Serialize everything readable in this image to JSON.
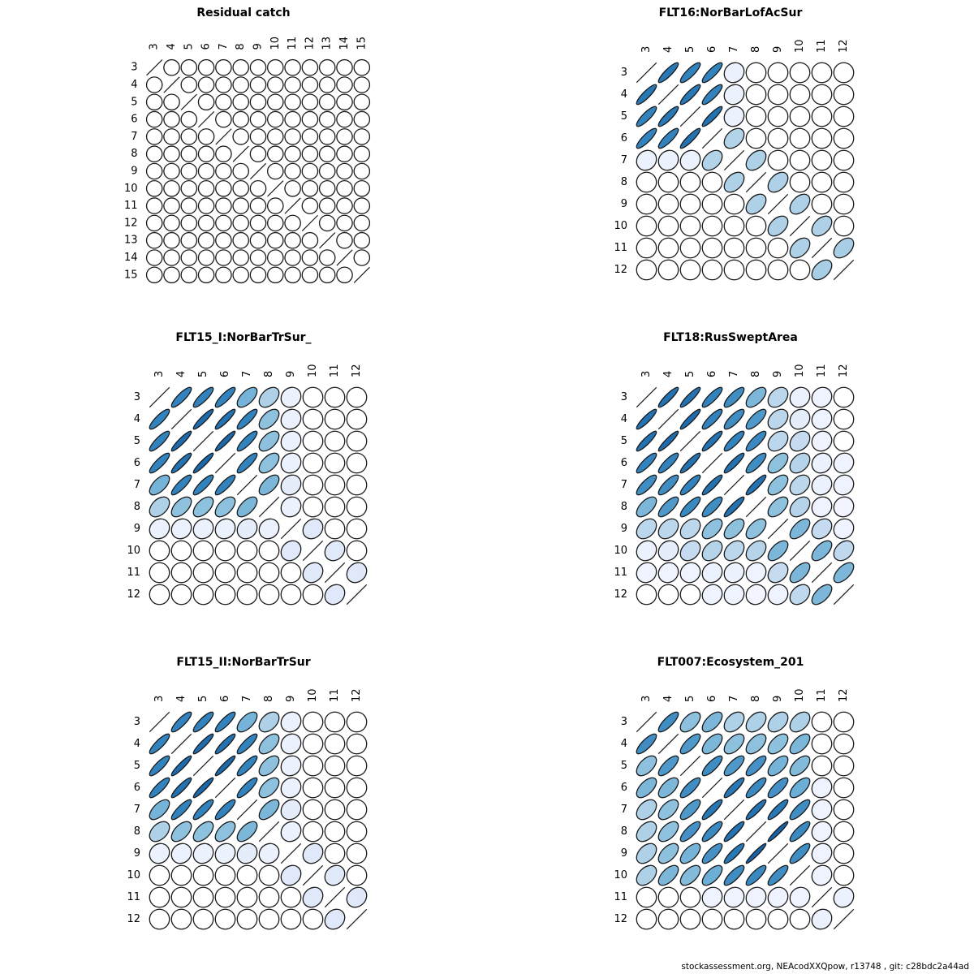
{
  "page": {
    "background": "#ffffff"
  },
  "footer": {
    "text": "stockassessment.org, NEAcodXXQpow, r13748 , git: c28bdc2a44ad"
  },
  "palette": {
    "description": "correlation magnitude mapped to Blues scale; 0 = white circle, 1 = diagonal line",
    "stroke": "#1a1a1a",
    "stops": [
      {
        "t": 0.0,
        "c": "#ffffff"
      },
      {
        "t": 0.1,
        "c": "#eff3ff"
      },
      {
        "t": 0.3,
        "c": "#c6dbef"
      },
      {
        "t": 0.5,
        "c": "#9ecae1"
      },
      {
        "t": 0.65,
        "c": "#6baed6"
      },
      {
        "t": 0.85,
        "c": "#3182bd"
      },
      {
        "t": 1.0,
        "c": "#08519c"
      }
    ]
  },
  "chart_data": [
    {
      "type": "heatmap",
      "subtype": "correlation-ellipse-matrix",
      "title": "Residual catch",
      "categories": [
        "3",
        "4",
        "5",
        "6",
        "7",
        "8",
        "9",
        "10",
        "11",
        "12",
        "13",
        "14",
        "15"
      ],
      "diagonal": 1,
      "upper_triangle": [
        [
          0,
          0,
          0,
          0,
          0,
          0,
          0,
          0,
          0,
          0,
          0,
          0
        ],
        [
          0,
          0,
          0,
          0,
          0,
          0,
          0,
          0,
          0,
          0,
          0
        ],
        [
          0,
          0,
          0,
          0,
          0,
          0,
          0,
          0,
          0,
          0
        ],
        [
          0,
          0,
          0,
          0,
          0,
          0,
          0,
          0,
          0
        ],
        [
          0,
          0,
          0,
          0,
          0,
          0,
          0,
          0
        ],
        [
          0,
          0,
          0,
          0,
          0,
          0,
          0
        ],
        [
          0,
          0,
          0,
          0,
          0,
          0
        ],
        [
          0,
          0,
          0,
          0,
          0
        ],
        [
          0,
          0,
          0,
          0
        ],
        [
          0,
          0,
          0
        ],
        [
          0,
          0
        ],
        [
          0
        ]
      ]
    },
    {
      "type": "heatmap",
      "subtype": "correlation-ellipse-matrix",
      "title": "FLT16:NorBarLofAcSur",
      "categories": [
        "3",
        "4",
        "5",
        "6",
        "7",
        "8",
        "9",
        "10",
        "11",
        "12"
      ],
      "diagonal": 1,
      "upper_triangle": [
        [
          0.88,
          0.85,
          0.85,
          0.12,
          0,
          0,
          0,
          0,
          0
        ],
        [
          0.88,
          0.85,
          0.12,
          0,
          0,
          0,
          0,
          0
        ],
        [
          0.9,
          0.12,
          0,
          0,
          0,
          0,
          0
        ],
        [
          0.4,
          0,
          0,
          0,
          0,
          0
        ],
        [
          0.42,
          0,
          0,
          0,
          0
        ],
        [
          0.42,
          0,
          0,
          0
        ],
        [
          0.42,
          0,
          0
        ],
        [
          0.42,
          0
        ],
        [
          0.45
        ]
      ]
    },
    {
      "type": "heatmap",
      "subtype": "correlation-ellipse-matrix",
      "title": "FLT15_I:NorBarTrSur_",
      "categories": [
        "3",
        "4",
        "5",
        "6",
        "7",
        "8",
        "9",
        "10",
        "11",
        "12"
      ],
      "diagonal": 1,
      "upper_triangle": [
        [
          0.85,
          0.85,
          0.85,
          0.62,
          0.42,
          0.12,
          0,
          0,
          0
        ],
        [
          0.92,
          0.9,
          0.85,
          0.55,
          0.12,
          0,
          0,
          0
        ],
        [
          0.93,
          0.85,
          0.55,
          0.12,
          0,
          0,
          0
        ],
        [
          0.85,
          0.55,
          0.12,
          0,
          0,
          0
        ],
        [
          0.6,
          0.15,
          0,
          0,
          0
        ],
        [
          0.12,
          0,
          0,
          0
        ],
        [
          0.18,
          0,
          0
        ],
        [
          0.18,
          0
        ],
        [
          0.18
        ]
      ]
    },
    {
      "type": "heatmap",
      "subtype": "correlation-ellipse-matrix",
      "title": "FLT18:RusSweptArea",
      "categories": [
        "3",
        "4",
        "5",
        "6",
        "7",
        "8",
        "9",
        "10",
        "11",
        "12"
      ],
      "diagonal": 1,
      "upper_triangle": [
        [
          0.9,
          0.9,
          0.85,
          0.8,
          0.6,
          0.35,
          0.12,
          0.1,
          0
        ],
        [
          0.92,
          0.85,
          0.8,
          0.75,
          0.35,
          0.15,
          0.1,
          0
        ],
        [
          0.9,
          0.85,
          0.82,
          0.35,
          0.3,
          0.1,
          0
        ],
        [
          0.9,
          0.8,
          0.55,
          0.38,
          0.12,
          0.1
        ],
        [
          0.9,
          0.55,
          0.35,
          0.12,
          0.1
        ],
        [
          0.55,
          0.38,
          0.1,
          0.08
        ],
        [
          0.6,
          0.3,
          0.1
        ],
        [
          0.6,
          0.33
        ],
        [
          0.6
        ]
      ]
    },
    {
      "type": "heatmap",
      "subtype": "correlation-ellipse-matrix",
      "title": "FLT15_II:NorBarTrSur",
      "categories": [
        "3",
        "4",
        "5",
        "6",
        "7",
        "8",
        "9",
        "10",
        "11",
        "12"
      ],
      "diagonal": 1,
      "upper_triangle": [
        [
          0.85,
          0.85,
          0.85,
          0.62,
          0.42,
          0.12,
          0,
          0,
          0
        ],
        [
          0.92,
          0.9,
          0.85,
          0.55,
          0.12,
          0,
          0,
          0
        ],
        [
          0.93,
          0.85,
          0.55,
          0.12,
          0,
          0,
          0
        ],
        [
          0.85,
          0.55,
          0.12,
          0,
          0,
          0
        ],
        [
          0.6,
          0.15,
          0,
          0,
          0
        ],
        [
          0.12,
          0,
          0,
          0
        ],
        [
          0.18,
          0,
          0
        ],
        [
          0.18,
          0
        ],
        [
          0.18
        ]
      ]
    },
    {
      "type": "heatmap",
      "subtype": "correlation-ellipse-matrix",
      "title": "FLT007:Ecosystem_201",
      "categories": [
        "3",
        "4",
        "5",
        "6",
        "7",
        "8",
        "9",
        "10",
        "11",
        "12"
      ],
      "diagonal": 1,
      "upper_triangle": [
        [
          0.8,
          0.55,
          0.6,
          0.42,
          0.42,
          0.42,
          0.42,
          0,
          0
        ],
        [
          0.75,
          0.6,
          0.55,
          0.55,
          0.55,
          0.6,
          0,
          0
        ],
        [
          0.8,
          0.75,
          0.78,
          0.62,
          0.58,
          0,
          0
        ],
        [
          0.88,
          0.82,
          0.78,
          0.65,
          0.1,
          0
        ],
        [
          0.9,
          0.88,
          0.8,
          0.1,
          0
        ],
        [
          0.95,
          0.82,
          0.1,
          0
        ],
        [
          0.8,
          0.1,
          0
        ],
        [
          0.1,
          0
        ],
        [
          0.12
        ]
      ]
    }
  ]
}
